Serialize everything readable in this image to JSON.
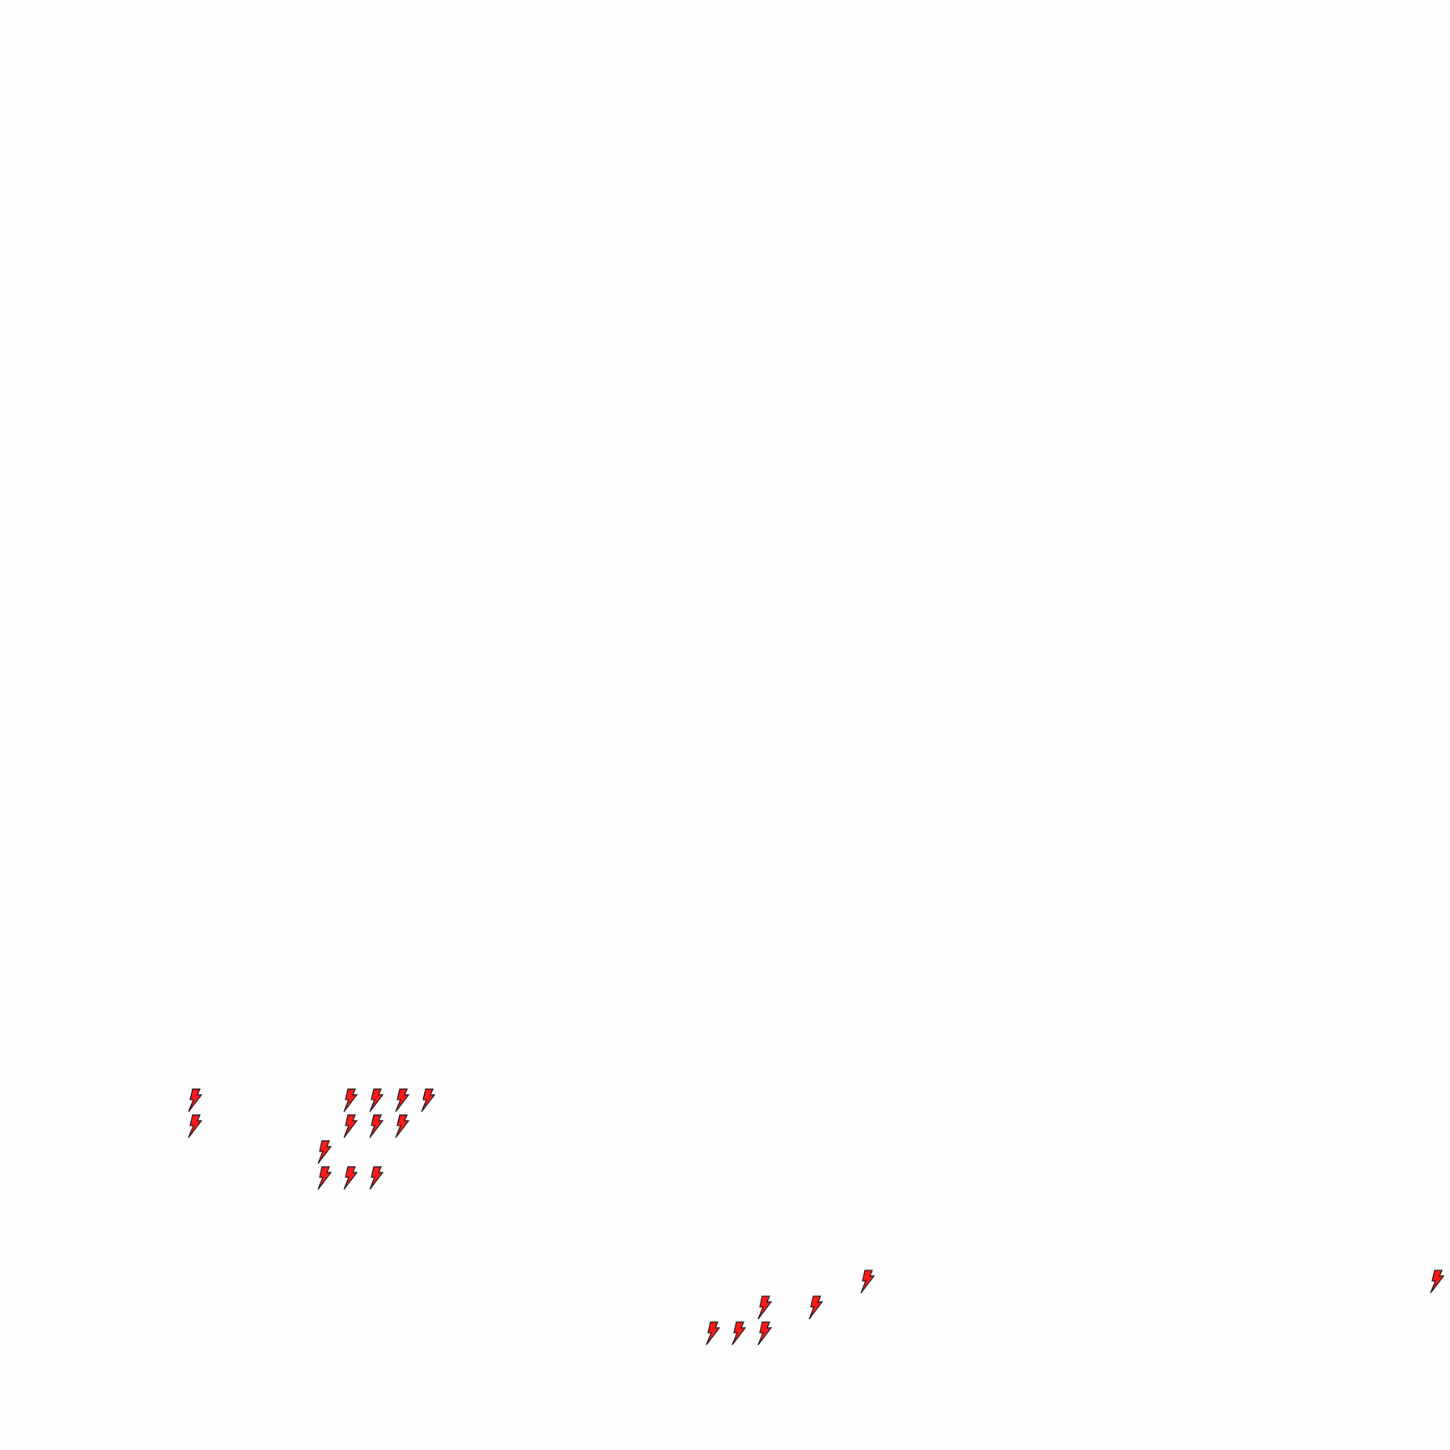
{
  "map": {
    "marker_icon": "lightning-bolt-icon",
    "marker_fill": "#ff1a1a",
    "marker_stroke": "#111111",
    "background": "#fefefe",
    "marker_count": 20
  }
}
